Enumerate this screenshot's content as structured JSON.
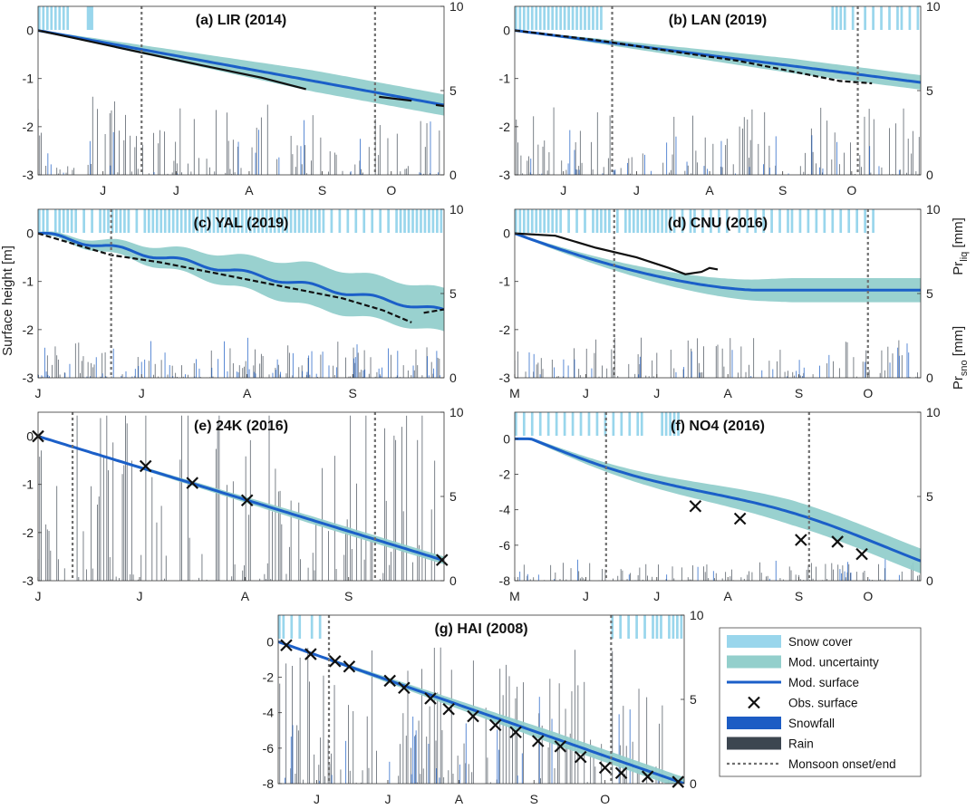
{
  "legend": [
    {
      "key": "snow",
      "label": "Snow cover"
    },
    {
      "key": "unc",
      "label": "Mod. uncertainty"
    },
    {
      "key": "mod",
      "label": "Mod. surface"
    },
    {
      "key": "obs",
      "label": "Obs. surface"
    },
    {
      "key": "snowfall",
      "label": "Snowfall"
    },
    {
      "key": "rain",
      "label": "Rain"
    },
    {
      "key": "monsoon",
      "label": "Monsoon onset/end"
    }
  ],
  "axis_labels": {
    "y_left": "Surface height [m]",
    "y_right_top": "Pr",
    "y_right_top_sub": "liq",
    "y_right_top_unit": " [mm]",
    "y_right_bottom": "Pr",
    "y_right_bottom_sub": "sno",
    "y_right_bottom_unit": " [mm]"
  },
  "colors": {
    "snow_cover": "#99d6ec",
    "uncertainty": "#93cfcc",
    "model": "#1b5fc8",
    "observed": "#111111",
    "snowfall": "#1c5cc4",
    "rain": "#3c4650",
    "monsoon": "#707070"
  },
  "chart_data": [
    {
      "id": "a",
      "type": "line",
      "title": "(a) LIR (2014)",
      "ylim": [
        -3,
        0.5
      ],
      "yticks": [
        0,
        -1,
        -2,
        -3
      ],
      "y2lim": [
        0,
        10
      ],
      "y2ticks": [
        0,
        5,
        10
      ],
      "xticks": [
        {
          "label": "J",
          "pos": 0.16
        },
        {
          "label": "J",
          "pos": 0.34
        },
        {
          "label": "A",
          "pos": 0.52
        },
        {
          "label": "S",
          "pos": 0.7
        },
        {
          "label": "O",
          "pos": 0.87
        }
      ],
      "monsoon": [
        0.255,
        0.83
      ],
      "model_end": -1.55,
      "model_shape": "linear",
      "unc_end": 0.22,
      "unc_hump": 0,
      "observed": [
        [
          0.0,
          0.0
        ],
        [
          0.1,
          -0.18
        ],
        [
          0.25,
          -0.45
        ],
        [
          0.4,
          -0.72
        ],
        [
          0.55,
          -0.98
        ],
        [
          0.66,
          -1.22
        ],
        null,
        [
          0.84,
          -1.38
        ],
        [
          0.92,
          -1.46
        ],
        null,
        [
          0.98,
          -1.55
        ],
        [
          1.0,
          -1.57
        ]
      ],
      "obs_style": "solid",
      "snow_bars": [
        0.0,
        0.01,
        0.02,
        0.03,
        0.04,
        0.05,
        0.06,
        0.07,
        0.12,
        0.13,
        0.125
      ],
      "rain_intensity": 0.55,
      "rain_max": 5.5,
      "snow_intensity": 0.25,
      "marks": []
    },
    {
      "id": "b",
      "type": "line",
      "title": "(b) LAN (2019)",
      "ylim": [
        -3,
        0.5
      ],
      "yticks": [
        0,
        -1,
        -2,
        -3
      ],
      "y2lim": [
        0,
        10
      ],
      "y2ticks": [
        0,
        5,
        10
      ],
      "xticks": [
        {
          "label": "J",
          "pos": 0.12
        },
        {
          "label": "J",
          "pos": 0.3
        },
        {
          "label": "A",
          "pos": 0.48
        },
        {
          "label": "S",
          "pos": 0.66
        },
        {
          "label": "O",
          "pos": 0.83
        }
      ],
      "monsoon": [
        0.24,
        0.845
      ],
      "model_end": -1.08,
      "model_shape": "linear",
      "unc_end": 0.15,
      "unc_hump": 0,
      "observed": [
        [
          0.0,
          0.0
        ],
        [
          0.2,
          -0.2
        ],
        [
          0.4,
          -0.45
        ],
        [
          0.55,
          -0.63
        ],
        [
          0.7,
          -0.88
        ],
        [
          0.77,
          -1.0
        ],
        [
          0.8,
          -1.05
        ],
        [
          0.85,
          -1.08
        ],
        [
          0.88,
          -1.1
        ]
      ],
      "obs_style": "dashed",
      "snow_bars": [
        0.0,
        0.01,
        0.02,
        0.03,
        0.04,
        0.05,
        0.06,
        0.07,
        0.08,
        0.09,
        0.1,
        0.11,
        0.12,
        0.13,
        0.14,
        0.15,
        0.16,
        0.17,
        0.18,
        0.19,
        0.2,
        0.21,
        0.78,
        0.79,
        0.8,
        0.81,
        0.83,
        0.86,
        0.88,
        0.9,
        0.92,
        0.94,
        0.95,
        0.97,
        0.99
      ],
      "rain_intensity": 0.55,
      "rain_max": 5.0,
      "snow_intensity": 0.3,
      "marks": []
    },
    {
      "id": "c",
      "type": "line",
      "title": "(c) YAL (2019)",
      "ylim": [
        -3,
        0.5
      ],
      "yticks": [
        0,
        -1,
        -2,
        -3
      ],
      "y2lim": [
        0,
        10
      ],
      "y2ticks": [
        0,
        5,
        10
      ],
      "xticks": [
        {
          "label": "J",
          "pos": 0.0
        },
        {
          "label": "J",
          "pos": 0.255
        },
        {
          "label": "A",
          "pos": 0.515
        },
        {
          "label": "S",
          "pos": 0.775
        }
      ],
      "monsoon": [
        0.18
      ],
      "model_end": -1.62,
      "model_shape": "wiggly",
      "unc_end": 0.45,
      "unc_hump": 0,
      "observed": [
        [
          0.0,
          0.0
        ],
        [
          0.1,
          -0.25
        ],
        [
          0.18,
          -0.45
        ],
        [
          0.3,
          -0.6
        ],
        [
          0.45,
          -0.85
        ],
        [
          0.6,
          -1.1
        ],
        [
          0.75,
          -1.35
        ],
        [
          0.85,
          -1.6
        ],
        [
          0.92,
          -1.85
        ],
        null,
        [
          0.95,
          -1.65
        ],
        [
          1.0,
          -1.58
        ]
      ],
      "obs_style": "dashed",
      "snow_bars": [
        0.0,
        0.01,
        0.02,
        0.04,
        0.05,
        0.06,
        0.07,
        0.08,
        0.09,
        0.11,
        0.13,
        0.15,
        0.16,
        0.17,
        0.18,
        0.19,
        0.2,
        0.21,
        0.22,
        0.24,
        0.26,
        0.27,
        0.28,
        0.29,
        0.3,
        0.31,
        0.32,
        0.33,
        0.34,
        0.35,
        0.36,
        0.37,
        0.38,
        0.39,
        0.4,
        0.41,
        0.42,
        0.43,
        0.44,
        0.45,
        0.46,
        0.47,
        0.48,
        0.49,
        0.5,
        0.51,
        0.52,
        0.53,
        0.54,
        0.55,
        0.56,
        0.57,
        0.58,
        0.59,
        0.6,
        0.61,
        0.62,
        0.63,
        0.64,
        0.65,
        0.66,
        0.67,
        0.68,
        0.69,
        0.7,
        0.72,
        0.74,
        0.76,
        0.78,
        0.8,
        0.82,
        0.84,
        0.86,
        0.88,
        0.89,
        0.9,
        0.91,
        0.92,
        0.93,
        0.94,
        0.95,
        0.96,
        0.97,
        0.98,
        0.99
      ],
      "rain_intensity": 0.25,
      "rain_max": 4.0,
      "snow_intensity": 0.85,
      "marks": []
    },
    {
      "id": "d",
      "type": "line",
      "title": "(d) CNU (2016)",
      "ylim": [
        -3,
        0.5
      ],
      "yticks": [
        0,
        -1,
        -2,
        -3
      ],
      "y2lim": [
        0,
        10
      ],
      "y2ticks": [
        0,
        5,
        10
      ],
      "xticks": [
        {
          "label": "M",
          "pos": 0.0
        },
        {
          "label": "J",
          "pos": 0.175
        },
        {
          "label": "J",
          "pos": 0.35
        },
        {
          "label": "A",
          "pos": 0.525
        },
        {
          "label": "S",
          "pos": 0.7
        },
        {
          "label": "O",
          "pos": 0.87
        }
      ],
      "monsoon": [
        0.245,
        0.87
      ],
      "model_end": -1.18,
      "model_shape": "plateau",
      "unc_end": 0.25,
      "unc_hump": 0,
      "observed": [
        [
          0.0,
          0.0
        ],
        [
          0.1,
          -0.05
        ],
        [
          0.2,
          -0.3
        ],
        [
          0.3,
          -0.5
        ],
        [
          0.38,
          -0.72
        ],
        [
          0.42,
          -0.85
        ],
        [
          0.46,
          -0.8
        ],
        [
          0.48,
          -0.72
        ],
        [
          0.5,
          -0.75
        ]
      ],
      "obs_style": "solid",
      "snow_bars": [
        0.0,
        0.01,
        0.02,
        0.03,
        0.04,
        0.05,
        0.06,
        0.07,
        0.08,
        0.09,
        0.1,
        0.11,
        0.13,
        0.15,
        0.17,
        0.19,
        0.2,
        0.21,
        0.22,
        0.23,
        0.25,
        0.27,
        0.28,
        0.29,
        0.3,
        0.31,
        0.32,
        0.33,
        0.34,
        0.35,
        0.36,
        0.37,
        0.38,
        0.39,
        0.41,
        0.43,
        0.44,
        0.46,
        0.48,
        0.5,
        0.52,
        0.55,
        0.57,
        0.59,
        0.61,
        0.63,
        0.65,
        0.67,
        0.68,
        0.7,
        0.72,
        0.74,
        0.76,
        0.78,
        0.8,
        0.82,
        0.84,
        0.86,
        0.88
      ],
      "rain_intensity": 0.3,
      "rain_max": 4.0,
      "snow_intensity": 0.3,
      "marks": []
    },
    {
      "id": "e",
      "type": "line",
      "title": "(e) 24K (2016)",
      "ylim": [
        -3,
        0.5
      ],
      "yticks": [
        0,
        -1,
        -2,
        -3
      ],
      "y2lim": [
        0,
        10
      ],
      "y2ticks": [
        0,
        5,
        10
      ],
      "xticks": [
        {
          "label": "J",
          "pos": 0.0
        },
        {
          "label": "J",
          "pos": 0.25
        },
        {
          "label": "A",
          "pos": 0.51
        },
        {
          "label": "S",
          "pos": 0.765
        }
      ],
      "monsoon": [
        0.085,
        0.83
      ],
      "model_end": -2.58,
      "model_shape": "linear",
      "unc_end": 0.08,
      "unc_hump": 0,
      "observed": [],
      "obs_style": "none",
      "snow_bars": [],
      "rain_intensity": 0.95,
      "rain_max": 9.5,
      "snow_intensity": 0.0,
      "marks": [
        [
          0.0,
          0.0
        ],
        [
          0.265,
          -0.62
        ],
        [
          0.38,
          -0.97
        ],
        [
          0.515,
          -1.33
        ],
        [
          0.995,
          -2.57
        ]
      ]
    },
    {
      "id": "f",
      "type": "line",
      "title": "(f) NO4 (2016)",
      "ylim": [
        -8,
        1.5
      ],
      "yticks": [
        0,
        -2,
        -4,
        -6,
        -8
      ],
      "y2lim": [
        0,
        10
      ],
      "y2ticks": [
        0,
        5,
        10
      ],
      "xticks": [
        {
          "label": "M",
          "pos": 0.0
        },
        {
          "label": "J",
          "pos": 0.175
        },
        {
          "label": "J",
          "pos": 0.35
        },
        {
          "label": "A",
          "pos": 0.525
        },
        {
          "label": "S",
          "pos": 0.7
        },
        {
          "label": "O",
          "pos": 0.87
        }
      ],
      "monsoon": [
        0.225,
        0.725
      ],
      "model_end": -6.7,
      "model_shape": "scurve",
      "unc_end": 0.7,
      "unc_hump": 0,
      "observed": [],
      "obs_style": "none",
      "snow_bars": [
        0.0,
        0.02,
        0.04,
        0.06,
        0.08,
        0.1,
        0.12,
        0.14,
        0.16,
        0.18,
        0.2,
        0.22,
        0.24,
        0.26,
        0.28,
        0.3,
        0.31,
        0.36,
        0.37,
        0.38,
        0.39,
        0.4
      ],
      "rain_intensity": 0.15,
      "rain_max": 2.5,
      "snow_intensity": 0.2,
      "marks": [
        [
          0.445,
          -3.8
        ],
        [
          0.555,
          -4.5
        ],
        [
          0.705,
          -5.7
        ],
        [
          0.795,
          -5.8
        ],
        [
          0.855,
          -6.5
        ]
      ]
    },
    {
      "id": "g",
      "type": "line",
      "title": "(g) HAI (2008)",
      "ylim": [
        -8,
        1.5
      ],
      "yticks": [
        0,
        -2,
        -4,
        -6,
        -8
      ],
      "y2lim": [
        0,
        10
      ],
      "y2ticks": [
        0,
        5,
        10
      ],
      "xticks": [
        {
          "label": "J",
          "pos": 0.095
        },
        {
          "label": "J",
          "pos": 0.27
        },
        {
          "label": "A",
          "pos": 0.445
        },
        {
          "label": "S",
          "pos": 0.63
        },
        {
          "label": "O",
          "pos": 0.805
        }
      ],
      "monsoon": [
        0.125,
        0.82
      ],
      "model_end": -8.0,
      "model_shape": "linear",
      "unc_end": 0.35,
      "unc_hump": 0,
      "observed": [],
      "obs_style": "none",
      "snow_bars": [
        0.0,
        0.01,
        0.03,
        0.05,
        0.08,
        0.1,
        0.82,
        0.84,
        0.86,
        0.88,
        0.9,
        0.92,
        0.93,
        0.94,
        0.96,
        0.97,
        0.98,
        0.99
      ],
      "rain_intensity": 0.6,
      "rain_max": 9.0,
      "snow_intensity": 0.25,
      "marks": [
        [
          0.02,
          -0.2
        ],
        [
          0.08,
          -0.7
        ],
        [
          0.14,
          -1.1
        ],
        [
          0.175,
          -1.4
        ],
        [
          0.275,
          -2.2
        ],
        [
          0.31,
          -2.6
        ],
        [
          0.375,
          -3.2
        ],
        [
          0.42,
          -3.8
        ],
        [
          0.48,
          -4.2
        ],
        [
          0.535,
          -4.7
        ],
        [
          0.585,
          -5.1
        ],
        [
          0.64,
          -5.6
        ],
        [
          0.695,
          -5.9
        ],
        [
          0.745,
          -6.5
        ],
        [
          0.805,
          -7.1
        ],
        [
          0.845,
          -7.4
        ],
        [
          0.91,
          -7.6
        ],
        [
          0.985,
          -7.9
        ]
      ]
    }
  ]
}
